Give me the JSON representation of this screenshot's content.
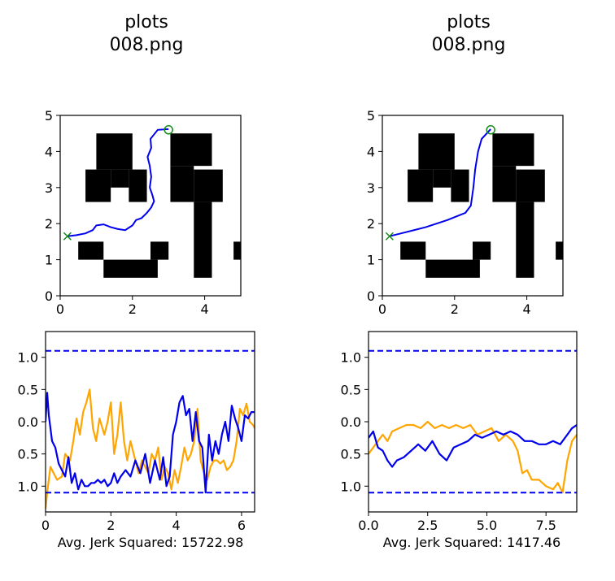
{
  "colors": {
    "obstacle": "#000000",
    "path": "#0000ee",
    "goal_marker": "#138a13",
    "series_orange": "#ffa500",
    "series_blue": "#0000ee",
    "limit_line": "#0000ee"
  },
  "chart_data": [
    {
      "type": "map",
      "title": "plots\n008.png",
      "title_lines": [
        "plots",
        "008.png"
      ],
      "xlim": [
        0,
        5
      ],
      "ylim": [
        0,
        5
      ],
      "xticks": [
        0,
        2,
        4
      ],
      "yticks": [
        0,
        1,
        2,
        3,
        4,
        5
      ],
      "obstacles": [
        [
          1.0,
          3.5,
          2.0,
          4.5
        ],
        [
          0.7,
          2.6,
          1.4,
          3.5
        ],
        [
          1.4,
          3.0,
          1.9,
          3.5
        ],
        [
          1.9,
          2.6,
          2.4,
          3.5
        ],
        [
          3.05,
          3.6,
          4.2,
          4.5
        ],
        [
          3.05,
          2.6,
          3.7,
          3.6
        ],
        [
          3.7,
          2.6,
          4.5,
          3.5
        ],
        [
          3.7,
          0.5,
          4.2,
          2.6
        ],
        [
          4.8,
          1.0,
          5.0,
          1.5
        ],
        [
          0.5,
          1.0,
          1.2,
          1.5
        ],
        [
          1.2,
          0.5,
          2.7,
          1.0
        ],
        [
          2.5,
          1.0,
          3.0,
          1.5
        ]
      ],
      "start": [
        0.2,
        1.65
      ],
      "goal": [
        3.0,
        4.6
      ],
      "path": [
        [
          0.2,
          1.65
        ],
        [
          0.45,
          1.68
        ],
        [
          0.7,
          1.73
        ],
        [
          0.9,
          1.82
        ],
        [
          1.0,
          1.95
        ],
        [
          1.2,
          1.98
        ],
        [
          1.4,
          1.9
        ],
        [
          1.6,
          1.85
        ],
        [
          1.8,
          1.82
        ],
        [
          2.0,
          1.95
        ],
        [
          2.1,
          2.1
        ],
        [
          2.25,
          2.15
        ],
        [
          2.4,
          2.3
        ],
        [
          2.52,
          2.45
        ],
        [
          2.6,
          2.62
        ],
        [
          2.55,
          2.8
        ],
        [
          2.48,
          3.0
        ],
        [
          2.52,
          3.3
        ],
        [
          2.48,
          3.6
        ],
        [
          2.42,
          3.85
        ],
        [
          2.52,
          4.1
        ],
        [
          2.5,
          4.35
        ],
        [
          2.7,
          4.6
        ],
        [
          3.0,
          4.62
        ]
      ]
    },
    {
      "type": "map",
      "title": "plots\n008.png",
      "title_lines": [
        "plots",
        "008.png"
      ],
      "xlim": [
        0,
        5
      ],
      "ylim": [
        0,
        5
      ],
      "xticks": [
        0,
        2,
        4
      ],
      "yticks": [
        0,
        1,
        2,
        3,
        4,
        5
      ],
      "obstacles": [
        [
          1.0,
          3.5,
          2.0,
          4.5
        ],
        [
          0.7,
          2.6,
          1.4,
          3.5
        ],
        [
          1.4,
          3.0,
          1.9,
          3.5
        ],
        [
          1.9,
          2.6,
          2.4,
          3.5
        ],
        [
          3.05,
          3.6,
          4.2,
          4.5
        ],
        [
          3.05,
          2.6,
          3.7,
          3.6
        ],
        [
          3.7,
          2.6,
          4.5,
          3.5
        ],
        [
          3.7,
          0.5,
          4.2,
          2.6
        ],
        [
          4.8,
          1.0,
          5.0,
          1.5
        ],
        [
          0.5,
          1.0,
          1.2,
          1.5
        ],
        [
          1.2,
          0.5,
          2.7,
          1.0
        ],
        [
          2.5,
          1.0,
          3.0,
          1.5
        ]
      ],
      "start": [
        0.2,
        1.65
      ],
      "goal": [
        3.0,
        4.6
      ],
      "path": [
        [
          0.2,
          1.65
        ],
        [
          0.6,
          1.75
        ],
        [
          1.2,
          1.9
        ],
        [
          1.8,
          2.1
        ],
        [
          2.3,
          2.3
        ],
        [
          2.45,
          2.5
        ],
        [
          2.52,
          3.0
        ],
        [
          2.57,
          3.5
        ],
        [
          2.65,
          4.0
        ],
        [
          2.75,
          4.35
        ],
        [
          3.0,
          4.62
        ]
      ]
    },
    {
      "type": "line",
      "caption": "Avg. Jerk Squared: 15722.98",
      "xlim": [
        0,
        6.4
      ],
      "ylim": [
        -1.4,
        1.4
      ],
      "xticks": [
        0,
        2,
        4,
        6
      ],
      "yticks": [
        1.0,
        0.5,
        0.0,
        -0.5,
        -1.0
      ],
      "ytick_labels": [
        "1.0",
        "0.5",
        "0.0",
        "0.5",
        "1.0"
      ],
      "hlines": [
        1.1,
        -1.1
      ],
      "series": [
        {
          "name": "orange",
          "color": "#ffa500",
          "x": [
            0,
            0.05,
            0.15,
            0.25,
            0.35,
            0.5,
            0.6,
            0.75,
            0.85,
            0.95,
            1.05,
            1.15,
            1.25,
            1.35,
            1.45,
            1.55,
            1.65,
            1.8,
            1.9,
            2.0,
            2.1,
            2.2,
            2.3,
            2.4,
            2.5,
            2.6,
            2.75,
            2.85,
            2.95,
            3.05,
            3.15,
            3.25,
            3.35,
            3.45,
            3.55,
            3.65,
            3.75,
            3.85,
            3.95,
            4.05,
            4.15,
            4.25,
            4.35,
            4.45,
            4.55,
            4.65,
            4.75,
            4.85,
            4.95,
            5.05,
            5.15,
            5.25,
            5.35,
            5.45,
            5.55,
            5.65,
            5.75,
            5.85,
            5.95,
            6.05,
            6.15,
            6.25,
            6.35,
            6.4
          ],
          "y": [
            -1.35,
            -1.1,
            -0.7,
            -0.8,
            -0.9,
            -0.85,
            -0.5,
            -0.6,
            -0.3,
            0.05,
            -0.2,
            0.15,
            0.3,
            0.5,
            -0.1,
            -0.3,
            0.05,
            -0.2,
            0.0,
            0.3,
            -0.5,
            -0.2,
            0.3,
            -0.3,
            -0.6,
            -0.3,
            -0.6,
            -0.8,
            -0.6,
            -0.7,
            -0.8,
            -0.5,
            -0.6,
            -0.4,
            -0.9,
            -0.7,
            -0.8,
            -1.05,
            -0.75,
            -0.95,
            -0.7,
            -0.4,
            -0.6,
            -0.5,
            -0.3,
            0.2,
            -0.6,
            -0.8,
            -0.9,
            -0.7,
            -0.6,
            -0.6,
            -0.65,
            -0.6,
            -0.75,
            -0.7,
            -0.6,
            -0.3,
            0.2,
            0.1,
            0.28,
            0.0,
            -0.05,
            -0.1
          ]
        },
        {
          "name": "blue",
          "color": "#0000ee",
          "x": [
            0,
            0.05,
            0.1,
            0.2,
            0.3,
            0.4,
            0.5,
            0.6,
            0.7,
            0.8,
            0.9,
            1.0,
            1.1,
            1.2,
            1.3,
            1.4,
            1.5,
            1.6,
            1.7,
            1.8,
            1.9,
            2.0,
            2.1,
            2.2,
            2.3,
            2.45,
            2.6,
            2.75,
            2.9,
            3.05,
            3.2,
            3.35,
            3.5,
            3.6,
            3.7,
            3.8,
            3.9,
            4.0,
            4.1,
            4.2,
            4.3,
            4.4,
            4.5,
            4.6,
            4.7,
            4.8,
            4.9,
            5.0,
            5.1,
            5.2,
            5.3,
            5.4,
            5.5,
            5.6,
            5.7,
            5.8,
            5.9,
            6.0,
            6.1,
            6.2,
            6.3,
            6.4
          ],
          "y": [
            0.0,
            0.45,
            0.1,
            -0.3,
            -0.4,
            -0.65,
            -0.75,
            -0.85,
            -0.55,
            -0.95,
            -0.8,
            -1.05,
            -0.9,
            -1.0,
            -1.0,
            -0.95,
            -0.95,
            -0.9,
            -0.95,
            -0.9,
            -1.0,
            -0.95,
            -0.8,
            -0.95,
            -0.85,
            -0.75,
            -0.85,
            -0.6,
            -0.8,
            -0.5,
            -0.95,
            -0.6,
            -0.9,
            -0.55,
            -1.0,
            -0.85,
            -0.2,
            0.0,
            0.3,
            0.4,
            0.1,
            0.2,
            -0.3,
            0.15,
            -0.3,
            -0.4,
            -1.1,
            -0.2,
            -0.6,
            -0.3,
            -0.5,
            -0.2,
            0.0,
            -0.3,
            0.25,
            0.05,
            -0.1,
            -0.3,
            0.1,
            0.05,
            0.15,
            0.15
          ]
        }
      ]
    },
    {
      "type": "line",
      "caption": "Avg. Jerk Squared: 1417.46",
      "xlim": [
        0,
        8.8
      ],
      "ylim": [
        -1.4,
        1.4
      ],
      "xticks": [
        0.0,
        2.5,
        5.0,
        7.5
      ],
      "xtick_labels": [
        "0.0",
        "2.5",
        "5.0",
        "7.5"
      ],
      "yticks": [
        1.0,
        0.5,
        0.0,
        -0.5,
        -1.0
      ],
      "ytick_labels": [
        "1.0",
        "0.5",
        "0.0",
        "0.5",
        "1.0"
      ],
      "hlines": [
        1.1,
        -1.1
      ],
      "series": [
        {
          "name": "orange",
          "color": "#ffa500",
          "x": [
            0,
            0.2,
            0.4,
            0.6,
            0.8,
            1.0,
            1.3,
            1.6,
            1.9,
            2.2,
            2.5,
            2.8,
            3.1,
            3.4,
            3.7,
            4.0,
            4.3,
            4.6,
            4.9,
            5.2,
            5.5,
            5.8,
            6.1,
            6.3,
            6.5,
            6.7,
            6.9,
            7.2,
            7.5,
            7.8,
            8.0,
            8.2,
            8.4,
            8.6,
            8.8
          ],
          "y": [
            -0.5,
            -0.4,
            -0.3,
            -0.2,
            -0.3,
            -0.15,
            -0.1,
            -0.05,
            -0.05,
            -0.1,
            0.0,
            -0.1,
            -0.05,
            -0.1,
            -0.05,
            -0.1,
            -0.05,
            -0.2,
            -0.15,
            -0.1,
            -0.3,
            -0.2,
            -0.3,
            -0.45,
            -0.8,
            -0.75,
            -0.9,
            -0.9,
            -1.0,
            -1.05,
            -0.95,
            -1.1,
            -0.6,
            -0.3,
            -0.2
          ]
        },
        {
          "name": "blue",
          "color": "#0000ee",
          "x": [
            0,
            0.2,
            0.4,
            0.6,
            0.8,
            1.0,
            1.2,
            1.5,
            1.8,
            2.1,
            2.4,
            2.7,
            3.0,
            3.3,
            3.6,
            3.9,
            4.2,
            4.5,
            4.8,
            5.1,
            5.4,
            5.7,
            6.0,
            6.3,
            6.6,
            6.9,
            7.2,
            7.5,
            7.8,
            8.1,
            8.4,
            8.6,
            8.8
          ],
          "y": [
            -0.25,
            -0.15,
            -0.4,
            -0.45,
            -0.6,
            -0.7,
            -0.6,
            -0.55,
            -0.45,
            -0.35,
            -0.45,
            -0.3,
            -0.5,
            -0.6,
            -0.4,
            -0.35,
            -0.3,
            -0.2,
            -0.25,
            -0.2,
            -0.15,
            -0.2,
            -0.15,
            -0.2,
            -0.3,
            -0.3,
            -0.35,
            -0.35,
            -0.3,
            -0.35,
            -0.2,
            -0.1,
            -0.05
          ]
        }
      ]
    }
  ]
}
